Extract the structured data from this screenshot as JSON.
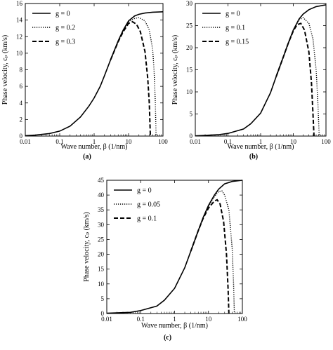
{
  "chart_data": [
    {
      "type": "line",
      "panel_label": "(a)",
      "xlabel": "Wave number, β (1/nm)",
      "ylabel": "Phase velocity, cₚ (km/s)",
      "xscale": "log",
      "xlim": [
        0.01,
        100
      ],
      "ylim": [
        0,
        16
      ],
      "xticks": [
        "0.01",
        "0.1",
        "1",
        "10",
        "100"
      ],
      "yticks": [
        "0",
        "2",
        "4",
        "6",
        "8",
        "10",
        "12",
        "14",
        "16"
      ],
      "legend": "top-left",
      "grid": false,
      "series": [
        {
          "name": "g = 0",
          "style": "solid",
          "points": [
            [
              0.01,
              0.05
            ],
            [
              0.02,
              0.12
            ],
            [
              0.05,
              0.3
            ],
            [
              0.1,
              0.6
            ],
            [
              0.2,
              1.2
            ],
            [
              0.4,
              2.3
            ],
            [
              0.7,
              3.6
            ],
            [
              1,
              4.6
            ],
            [
              1.5,
              6.0
            ],
            [
              2,
              7.3
            ],
            [
              3,
              9.2
            ],
            [
              5,
              11.5
            ],
            [
              7,
              12.8
            ],
            [
              10,
              13.9
            ],
            [
              15,
              14.5
            ],
            [
              20,
              14.7
            ],
            [
              30,
              14.85
            ],
            [
              50,
              14.95
            ],
            [
              100,
              15.0
            ]
          ]
        },
        {
          "name": "g = 0.2",
          "style": "dotted",
          "points": [
            [
              3,
              9.2
            ],
            [
              5,
              11.4
            ],
            [
              7,
              12.7
            ],
            [
              10,
              13.8
            ],
            [
              15,
              14.2
            ],
            [
              20,
              14.3
            ],
            [
              30,
              13.9
            ],
            [
              40,
              12.8
            ],
            [
              50,
              10.5
            ],
            [
              55,
              8.0
            ],
            [
              60,
              4.0
            ],
            [
              63,
              0
            ]
          ]
        },
        {
          "name": "g = 0.3",
          "style": "dashed",
          "points": [
            [
              3,
              9.2
            ],
            [
              5,
              11.4
            ],
            [
              7,
              12.6
            ],
            [
              10,
              13.6
            ],
            [
              13,
              13.8
            ],
            [
              17,
              13.5
            ],
            [
              22,
              12.6
            ],
            [
              30,
              10.2
            ],
            [
              36,
              7.0
            ],
            [
              40,
              4.0
            ],
            [
              43,
              0
            ]
          ]
        }
      ]
    },
    {
      "type": "line",
      "panel_label": "(b)",
      "xlabel": "Wave number, β (1/nm)",
      "ylabel": "Phase velocity, cₚ (km/s)",
      "xscale": "log",
      "xlim": [
        0.01,
        100
      ],
      "ylim": [
        0,
        30
      ],
      "xticks": [
        "0.01",
        "0.1",
        "1",
        "10",
        "100"
      ],
      "yticks": [
        "0",
        "5",
        "10",
        "15",
        "20",
        "25",
        "30"
      ],
      "legend": "top-left",
      "grid": false,
      "series": [
        {
          "name": "g = 0",
          "style": "solid",
          "points": [
            [
              0.01,
              0.05
            ],
            [
              0.05,
              0.3
            ],
            [
              0.1,
              0.6
            ],
            [
              0.3,
              1.6
            ],
            [
              0.5,
              2.8
            ],
            [
              1,
              5.2
            ],
            [
              2,
              9.8
            ],
            [
              3,
              13.5
            ],
            [
              5,
              18.0
            ],
            [
              7,
              21.0
            ],
            [
              10,
              24.0
            ],
            [
              15,
              26.5
            ],
            [
              20,
              27.6
            ],
            [
              30,
              28.6
            ],
            [
              50,
              29.3
            ],
            [
              100,
              29.7
            ]
          ]
        },
        {
          "name": "g = 0.1",
          "style": "dotted",
          "points": [
            [
              3,
              13.5
            ],
            [
              5,
              18.0
            ],
            [
              7,
              21.0
            ],
            [
              10,
              24.0
            ],
            [
              15,
              26.3
            ],
            [
              20,
              26.8
            ],
            [
              30,
              25.5
            ],
            [
              40,
              22.0
            ],
            [
              50,
              15.0
            ],
            [
              57,
              7.0
            ],
            [
              62,
              0
            ]
          ]
        },
        {
          "name": "g = 0.15",
          "style": "dashed",
          "points": [
            [
              3,
              13.5
            ],
            [
              5,
              18.0
            ],
            [
              7,
              21.0
            ],
            [
              10,
              23.8
            ],
            [
              13,
              25.2
            ],
            [
              17,
              25.5
            ],
            [
              22,
              24.0
            ],
            [
              30,
              19.0
            ],
            [
              36,
              12.0
            ],
            [
              40,
              5.0
            ],
            [
              43,
              0
            ]
          ]
        }
      ]
    },
    {
      "type": "line",
      "panel_label": "(c)",
      "xlabel": "Wave number, β (1/nm)",
      "ylabel": "Phase velocity, cₚ (km/s)",
      "xscale": "log",
      "xlim": [
        0.01,
        100
      ],
      "ylim": [
        0,
        45
      ],
      "xticks": [
        "0.01",
        "0.1",
        "1",
        "10",
        "100"
      ],
      "yticks": [
        "0",
        "5",
        "10",
        "15",
        "20",
        "25",
        "30",
        "35",
        "40",
        "45"
      ],
      "legend": "top-left",
      "grid": false,
      "series": [
        {
          "name": "g = 0",
          "style": "solid",
          "points": [
            [
              0.01,
              0.1
            ],
            [
              0.05,
              0.4
            ],
            [
              0.1,
              1.0
            ],
            [
              0.3,
              2.5
            ],
            [
              0.5,
              4.5
            ],
            [
              1,
              8.5
            ],
            [
              2,
              15.5
            ],
            [
              3,
              21.0
            ],
            [
              5,
              28.0
            ],
            [
              7,
              32.5
            ],
            [
              10,
              36.5
            ],
            [
              15,
              40.0
            ],
            [
              20,
              42.0
            ],
            [
              30,
              43.8
            ],
            [
              50,
              44.6
            ],
            [
              100,
              45.0
            ]
          ]
        },
        {
          "name": "g = 0.05",
          "style": "dotted",
          "points": [
            [
              3,
              21.0
            ],
            [
              5,
              28.0
            ],
            [
              7,
              32.4
            ],
            [
              10,
              36.2
            ],
            [
              15,
              39.5
            ],
            [
              20,
              41.2
            ],
            [
              25,
              41.4
            ],
            [
              30,
              40.0
            ],
            [
              40,
              35.0
            ],
            [
              50,
              22.0
            ],
            [
              55,
              10.0
            ],
            [
              58,
              0
            ]
          ]
        },
        {
          "name": "g = 0.1",
          "style": "dashed",
          "points": [
            [
              3,
              21.0
            ],
            [
              5,
              28.0
            ],
            [
              7,
              32.2
            ],
            [
              10,
              35.6
            ],
            [
              15,
              38.0
            ],
            [
              18,
              38.4
            ],
            [
              22,
              37.0
            ],
            [
              28,
              31.0
            ],
            [
              34,
              20.0
            ],
            [
              38,
              8.0
            ],
            [
              40,
              0
            ]
          ]
        }
      ]
    }
  ]
}
